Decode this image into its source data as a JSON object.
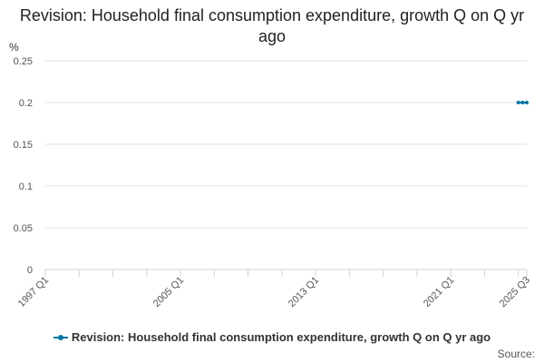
{
  "chart_data": {
    "type": "line",
    "title": "Revision: Household final consumption expenditure, growth Q on Q yr ago",
    "ylabel": "%",
    "xlabel": "",
    "ylim": [
      0,
      0.25
    ],
    "yticks": [
      0,
      0.05,
      0.1,
      0.15,
      0.2,
      0.25
    ],
    "ytick_labels": [
      "0",
      "0.05",
      "0.1",
      "0.15",
      "0.2",
      "0.25"
    ],
    "xrange": [
      "1997 Q1",
      "2025 Q3"
    ],
    "xtick_labels": [
      "1997 Q1",
      "2005 Q1",
      "2013 Q1",
      "2021 Q1",
      "2025 Q3"
    ],
    "grid": true,
    "series": [
      {
        "name": "Revision: Household final consumption expenditure, growth Q on Q yr ago",
        "color": "#0075a3",
        "points": [
          {
            "x": "2025 Q1",
            "y": 0.2
          },
          {
            "x": "2025 Q2",
            "y": 0.2
          },
          {
            "x": "2025 Q3",
            "y": 0.2
          }
        ]
      }
    ],
    "legend_position": "bottom",
    "source_label": "Source:"
  }
}
